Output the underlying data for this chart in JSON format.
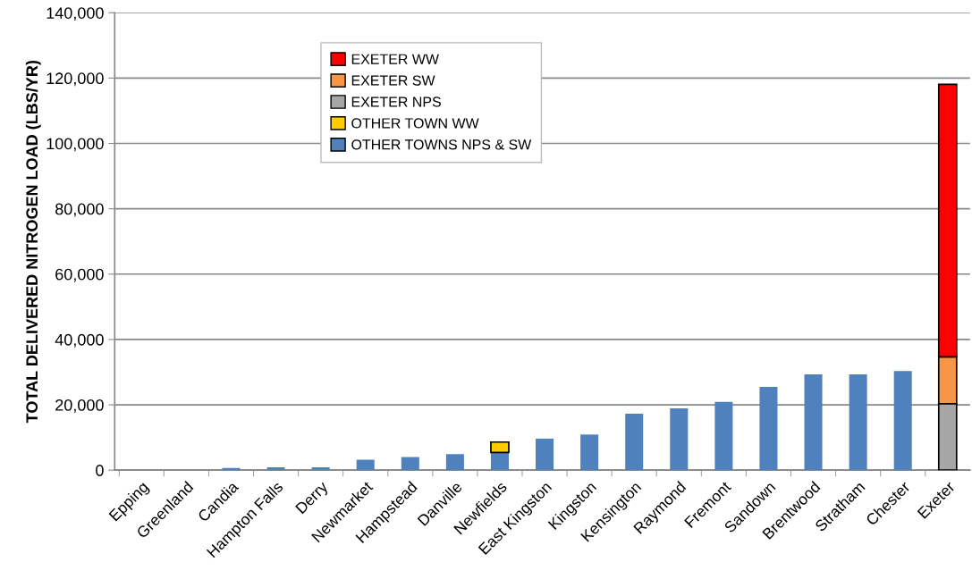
{
  "chart_data": {
    "type": "bar",
    "stacked": true,
    "ylabel": "TOTAL DELIVERED NITROGEN LOAD (LBS/YR)",
    "categories": [
      "Epping",
      "Greenland",
      "Candia",
      "Hampton Falls",
      "Derry",
      "Newmarket",
      "Hampstead",
      "Danville",
      "Newfields",
      "East Kingston",
      "Kingston",
      "Kensington",
      "Raymond",
      "Fremont",
      "Sandown",
      "Brentwood",
      "Stratham",
      "Chester",
      "Exeter"
    ],
    "series": [
      {
        "name": "OTHER TOWNS NPS & SW",
        "color": "#4f81bd",
        "values": [
          0,
          0,
          650,
          900,
          900,
          3200,
          4000,
          4900,
          5400,
          9650,
          10900,
          17300,
          18900,
          20900,
          25450,
          29300,
          29300,
          30350,
          null
        ]
      },
      {
        "name": "OTHER TOWN WW",
        "color": "#ffcc00",
        "values": [
          null,
          null,
          null,
          null,
          null,
          null,
          null,
          null,
          3200,
          null,
          null,
          null,
          null,
          null,
          null,
          null,
          null,
          null,
          null
        ]
      },
      {
        "name": "EXETER NPS",
        "color": "#a6a6a6",
        "values": [
          null,
          null,
          null,
          null,
          null,
          null,
          null,
          null,
          null,
          null,
          null,
          null,
          null,
          null,
          null,
          null,
          null,
          null,
          20350
        ]
      },
      {
        "name": "EXETER SW",
        "color": "#f79646",
        "values": [
          null,
          null,
          null,
          null,
          null,
          null,
          null,
          null,
          null,
          null,
          null,
          null,
          null,
          null,
          null,
          null,
          null,
          null,
          14350
        ]
      },
      {
        "name": "EXETER WW",
        "color": "#ff0000",
        "values": [
          null,
          null,
          null,
          null,
          null,
          null,
          null,
          null,
          null,
          null,
          null,
          null,
          null,
          null,
          null,
          null,
          null,
          null,
          83400
        ]
      }
    ],
    "ylim": [
      0,
      140000
    ],
    "yticks": [
      0,
      {
        "value": 20000,
        "label": "20,000"
      },
      {
        "value": 40000,
        "label": "40,000"
      },
      {
        "value": 60000,
        "label": "60,000"
      },
      {
        "value": 80000,
        "label": "80,000"
      },
      {
        "value": 100000,
        "label": "100,000"
      },
      {
        "value": 120000,
        "label": "120,000"
      },
      {
        "value": 140000,
        "label": "140,000"
      }
    ],
    "grid": "y",
    "legend": "top"
  }
}
